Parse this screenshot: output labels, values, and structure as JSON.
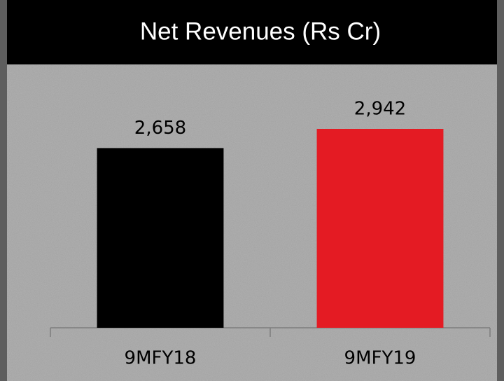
{
  "chart_data": {
    "type": "bar",
    "title": "Net Revenues (Rs Cr)",
    "categories": [
      "9MFY18",
      "9MFY19"
    ],
    "values": [
      2658,
      2942
    ],
    "value_labels": [
      "2,658",
      "2,942"
    ],
    "colors": [
      "#000000",
      "#e41b23"
    ]
  }
}
